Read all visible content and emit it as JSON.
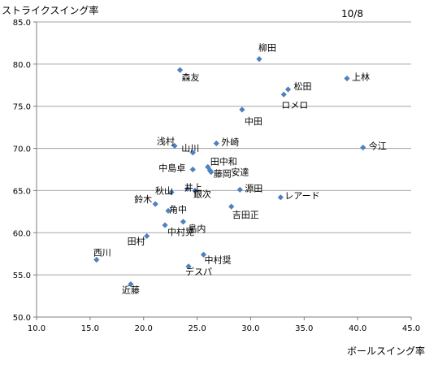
{
  "chart_data": {
    "type": "scatter",
    "title": "",
    "date_label": "10/8",
    "xlabel": "ボールスイング率",
    "ylabel": "ストライクスイング率",
    "xlim": [
      10,
      45
    ],
    "ylim": [
      50,
      85
    ],
    "xticks": [
      "10.0",
      "15.0",
      "20.0",
      "25.0",
      "30.0",
      "35.0",
      "40.0",
      "45.0"
    ],
    "yticks": [
      "50.0",
      "55.0",
      "60.0",
      "65.0",
      "70.0",
      "75.0",
      "80.0",
      "85.0"
    ],
    "grid": "horizontal",
    "marker_color": "#4f81bd",
    "points": [
      {
        "label": "柳田",
        "x": 30.8,
        "y": 80.6
      },
      {
        "label": "森友",
        "x": 23.4,
        "y": 79.3
      },
      {
        "label": "上林",
        "x": 39.0,
        "y": 78.3
      },
      {
        "label": "松田",
        "x": 33.5,
        "y": 77.0
      },
      {
        "label": "ロメロ",
        "x": 33.1,
        "y": 76.4
      },
      {
        "label": "中田",
        "x": 29.2,
        "y": 74.6
      },
      {
        "label": "今江",
        "x": 40.5,
        "y": 70.1
      },
      {
        "label": "浅村",
        "x": 22.9,
        "y": 70.3
      },
      {
        "label": "外崎",
        "x": 26.8,
        "y": 70.6
      },
      {
        "label": "山川",
        "x": 24.6,
        "y": 69.5
      },
      {
        "label": "田中和",
        "x": 26.0,
        "y": 67.8
      },
      {
        "label": "中島卓",
        "x": 24.6,
        "y": 67.5
      },
      {
        "label": "藤岡",
        "x": 26.3,
        "y": 67.2
      },
      {
        "label": "安達",
        "x": 26.2,
        "y": 67.4
      },
      {
        "label": "井上",
        "x": 24.1,
        "y": 65.2
      },
      {
        "label": "源田",
        "x": 29.0,
        "y": 65.1
      },
      {
        "label": "銀次",
        "x": 24.8,
        "y": 65.0
      },
      {
        "label": "秋山",
        "x": 22.6,
        "y": 64.8
      },
      {
        "label": "レアード",
        "x": 32.8,
        "y": 64.2
      },
      {
        "label": "鈴木",
        "x": 21.1,
        "y": 63.4
      },
      {
        "label": "吉田正",
        "x": 28.2,
        "y": 63.1
      },
      {
        "label": "角中",
        "x": 22.3,
        "y": 62.6
      },
      {
        "label": "島内",
        "x": 23.7,
        "y": 61.3
      },
      {
        "label": "中村晃",
        "x": 22.0,
        "y": 60.9
      },
      {
        "label": "田村",
        "x": 20.3,
        "y": 59.6
      },
      {
        "label": "中村奨",
        "x": 25.6,
        "y": 57.4
      },
      {
        "label": "西川",
        "x": 15.6,
        "y": 56.8
      },
      {
        "label": "デスパ",
        "x": 24.2,
        "y": 56.0
      },
      {
        "label": "近藤",
        "x": 18.8,
        "y": 53.9
      }
    ]
  }
}
